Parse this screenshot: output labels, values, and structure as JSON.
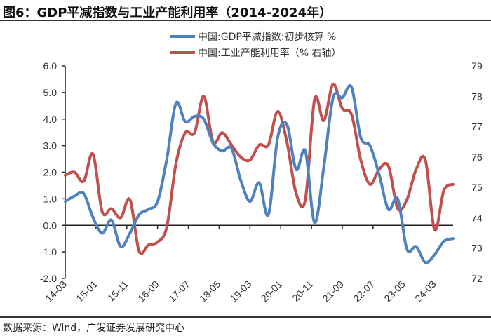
{
  "title": "图6：GDP平减指数与工业产能利用率（2014-2024年）",
  "source": "数据来源：Wind，广发证券发展研究中心",
  "chart_data": {
    "type": "line",
    "title": "图6：GDP平减指数与工业产能利用率（2014-2024年）",
    "x_tick_labels": [
      "14-03",
      "15-01",
      "15-11",
      "16-09",
      "17-07",
      "18-05",
      "19-03",
      "20-01",
      "20-11",
      "21-09",
      "22-07",
      "23-05",
      "24-03"
    ],
    "x_range": [
      "14-03",
      "24-09"
    ],
    "x_frequency": "quarterly",
    "y_left": {
      "range": [
        -2.0,
        6.0
      ],
      "ticks": [
        "-2.0",
        "-1.0",
        "0.0",
        "1.0",
        "2.0",
        "3.0",
        "4.0",
        "5.0",
        "6.0"
      ]
    },
    "y_right": {
      "range": [
        72,
        79
      ],
      "ticks": [
        "72",
        "73",
        "74",
        "75",
        "76",
        "77",
        "78",
        "79"
      ]
    },
    "grid": false,
    "legend_placement": "top-center",
    "series": [
      {
        "name": "中国:GDP平减指数:初步核算 %",
        "axis": "left",
        "color": "#4F81BD",
        "values": [
          0.9,
          1.1,
          1.2,
          0.3,
          -0.3,
          0.2,
          -0.8,
          -0.3,
          0.4,
          0.6,
          0.9,
          2.5,
          4.6,
          3.9,
          4.1,
          4.0,
          3.1,
          2.8,
          2.9,
          1.7,
          0.9,
          1.6,
          0.4,
          3.3,
          3.8,
          2.1,
          2.8,
          0.1,
          2.2,
          4.8,
          4.8,
          5.2,
          3.3,
          3.0,
          1.9,
          0.6,
          1.0,
          -0.9,
          -0.8,
          -1.4,
          -1.1,
          -0.6,
          -0.5
        ]
      },
      {
        "name": "中国:工业产能利用率（% 右轴）",
        "axis": "right",
        "color": "#C0504D",
        "values": [
          75.4,
          75.5,
          75.2,
          76.1,
          74.2,
          74.3,
          74.0,
          74.6,
          72.9,
          73.1,
          73.2,
          73.7,
          75.8,
          76.8,
          76.8,
          78.0,
          76.5,
          76.8,
          76.4,
          76.0,
          75.9,
          76.4,
          76.4,
          77.5,
          76.5,
          74.8,
          74.6,
          77.9,
          77.2,
          78.4,
          77.6,
          77.4,
          75.9,
          75.1,
          75.6,
          75.7,
          74.3,
          74.6,
          75.6,
          75.9,
          73.6,
          74.9,
          75.1
        ]
      }
    ]
  }
}
